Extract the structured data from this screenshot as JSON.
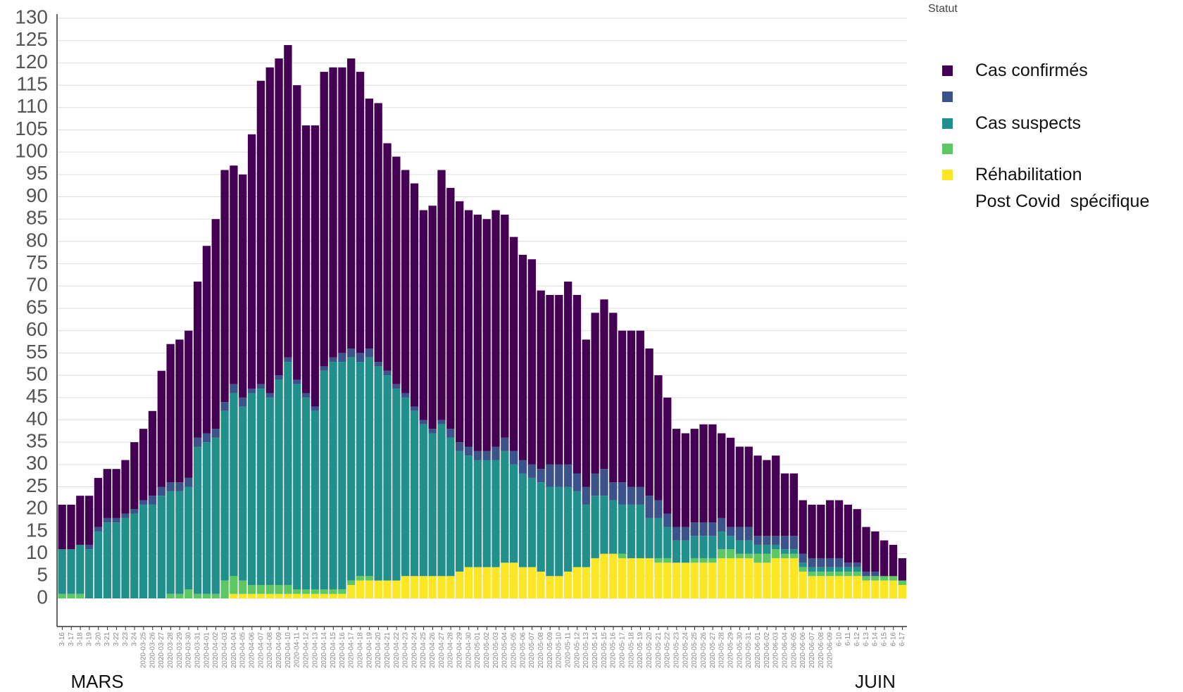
{
  "chart_data": {
    "type": "bar",
    "stacked": true,
    "legend_title": "Statut",
    "annotations": [
      "MARS",
      "JUIN"
    ],
    "categories": [
      "3-16",
      "3-17",
      "3-18",
      "3-19",
      "3-20",
      "3-21",
      "3-22",
      "3-23",
      "3-24",
      "2020-03-25",
      "2020-03-26",
      "2020-03-27",
      "2020-03-28",
      "2020-03-29",
      "2020-03-30",
      "2020-03-31",
      "2020-04-01",
      "2020-04-02",
      "2020-04-03",
      "2020-04-04",
      "2020-04-05",
      "2020-04-06",
      "2020-04-07",
      "2020-04-08",
      "2020-04-09",
      "2020-04-10",
      "2020-04-11",
      "2020-04-12",
      "2020-04-13",
      "2020-04-14",
      "2020-04-15",
      "2020-04-16",
      "2020-04-17",
      "2020-04-18",
      "2020-04-19",
      "2020-04-20",
      "2020-04-21",
      "2020-04-22",
      "2020-04-23",
      "2020-04-24",
      "2020-04-25",
      "2020-04-26",
      "2020-04-27",
      "2020-04-28",
      "2020-04-29",
      "2020-04-30",
      "2020-05-01",
      "2020-05-02",
      "2020-05-03",
      "2020-05-04",
      "2020-05-05",
      "2020-05-06",
      "2020-05-07",
      "2020-05-08",
      "2020-05-09",
      "2020-05-10",
      "2020-05-11",
      "2020-05-12",
      "2020-05-13",
      "2020-05-14",
      "2020-05-15",
      "2020-05-16",
      "2020-05-17",
      "2020-05-18",
      "2020-05-19",
      "2020-05-20",
      "2020-05-21",
      "2020-05-22",
      "2020-05-23",
      "2020-05-24",
      "2020-05-25",
      "2020-05-26",
      "2020-05-27",
      "2020-05-28",
      "2020-05-29",
      "2020-05-30",
      "2020-05-31",
      "2020-06-01",
      "2020-06-02",
      "2020-06-03",
      "2020-06-04",
      "2020-06-05",
      "2020-06-06",
      "2020-06-07",
      "2020-06-08",
      "2020-06-09",
      "6-10",
      "6-11",
      "6-12",
      "6-13",
      "6-14",
      "6-15",
      "6-16",
      "6-17"
    ],
    "series": [
      {
        "name": "Réhabilitation\nPost Covid  spécifique",
        "color": "#fde725",
        "values": [
          0,
          0,
          0,
          0,
          0,
          0,
          0,
          0,
          0,
          0,
          0,
          0,
          0,
          0,
          0,
          0,
          0,
          0,
          0,
          1,
          1,
          1,
          1,
          1,
          1,
          1,
          1,
          1,
          1,
          1,
          1,
          1,
          3,
          4,
          4,
          4,
          4,
          4,
          5,
          5,
          5,
          5,
          5,
          5,
          6,
          7,
          7,
          7,
          7,
          8,
          8,
          7,
          7,
          6,
          5,
          5,
          6,
          7,
          7,
          9,
          10,
          10,
          9,
          9,
          9,
          9,
          8,
          8,
          8,
          8,
          8,
          8,
          8,
          9,
          9,
          9,
          9,
          8,
          8,
          9,
          9,
          9,
          6,
          5,
          5,
          5,
          5,
          5,
          5,
          4,
          4,
          4,
          4,
          3
        ]
      },
      {
        "color": "#5dc863",
        "values": [
          1,
          1,
          1,
          0,
          0,
          0,
          0,
          0,
          0,
          0,
          0,
          0,
          1,
          1,
          2,
          1,
          1,
          1,
          4,
          4,
          3,
          2,
          2,
          2,
          2,
          2,
          1,
          1,
          1,
          1,
          1,
          1,
          1,
          1,
          1,
          0,
          0,
          0,
          0,
          0,
          0,
          0,
          0,
          0,
          0,
          0,
          0,
          0,
          0,
          0,
          0,
          0,
          0,
          0,
          0,
          0,
          0,
          0,
          0,
          0,
          0,
          0,
          1,
          0,
          0,
          0,
          1,
          1,
          0,
          0,
          1,
          1,
          1,
          2,
          2,
          1,
          1,
          2,
          2,
          2,
          1,
          1,
          1,
          1,
          1,
          1,
          1,
          1,
          1,
          1,
          1,
          1,
          1,
          1
        ]
      },
      {
        "name": "Cas suspects",
        "color": "#21908d",
        "values": [
          10,
          10,
          11,
          11,
          15,
          17,
          17,
          18,
          19,
          21,
          21,
          23,
          23,
          23,
          23,
          33,
          34,
          35,
          38,
          41,
          39,
          43,
          44,
          42,
          46,
          50,
          46,
          43,
          40,
          49,
          51,
          51,
          50,
          48,
          49,
          48,
          46,
          43,
          40,
          37,
          34,
          32,
          34,
          31,
          27,
          25,
          24,
          24,
          24,
          25,
          22,
          21,
          20,
          20,
          20,
          20,
          19,
          17,
          14,
          14,
          13,
          12,
          11,
          12,
          12,
          9,
          9,
          7,
          5,
          5,
          5,
          5,
          5,
          4,
          3,
          3,
          3,
          2,
          2,
          1,
          1,
          1,
          1,
          1,
          1,
          1,
          1,
          1,
          1,
          0,
          0,
          0,
          0,
          0
        ]
      },
      {
        "color": "#3b528b",
        "values": [
          0,
          0,
          0,
          1,
          1,
          1,
          1,
          1,
          1,
          1,
          2,
          2,
          2,
          2,
          2,
          2,
          2,
          2,
          2,
          2,
          2,
          1,
          1,
          1,
          1,
          1,
          1,
          1,
          1,
          1,
          1,
          2,
          2,
          2,
          2,
          1,
          1,
          1,
          1,
          1,
          1,
          1,
          1,
          2,
          2,
          2,
          2,
          2,
          3,
          3,
          3,
          3,
          3,
          3,
          5,
          5,
          5,
          4,
          4,
          5,
          6,
          4,
          5,
          4,
          4,
          5,
          4,
          3,
          3,
          3,
          3,
          3,
          3,
          3,
          2,
          3,
          3,
          2,
          2,
          2,
          3,
          3,
          2,
          2,
          2,
          2,
          2,
          1,
          1,
          1,
          1,
          0,
          0,
          0
        ]
      },
      {
        "name": "Cas confirmés",
        "color": "#440154",
        "values": [
          10,
          10,
          11,
          11,
          11,
          11,
          11,
          12,
          15,
          16,
          19,
          26,
          31,
          32,
          33,
          35,
          42,
          47,
          52,
          49,
          50,
          57,
          68,
          73,
          71,
          70,
          66,
          60,
          63,
          66,
          65,
          64,
          65,
          63,
          56,
          58,
          51,
          51,
          50,
          50,
          47,
          50,
          56,
          54,
          54,
          53,
          53,
          52,
          53,
          50,
          48,
          46,
          46,
          40,
          38,
          38,
          41,
          40,
          33,
          36,
          38,
          38,
          34,
          35,
          35,
          33,
          28,
          26,
          22,
          21,
          21,
          22,
          22,
          19,
          20,
          18,
          18,
          18,
          17,
          18,
          14,
          14,
          12,
          12,
          12,
          13,
          13,
          13,
          12,
          10,
          9,
          8,
          7,
          5
        ]
      }
    ],
    "ylim": [
      0,
      130
    ],
    "yticks": [
      0,
      5,
      10,
      15,
      20,
      25,
      30,
      35,
      40,
      45,
      50,
      55,
      60,
      65,
      70,
      75,
      80,
      85,
      90,
      95,
      100,
      105,
      110,
      115,
      120,
      125,
      130
    ],
    "grid": true
  }
}
